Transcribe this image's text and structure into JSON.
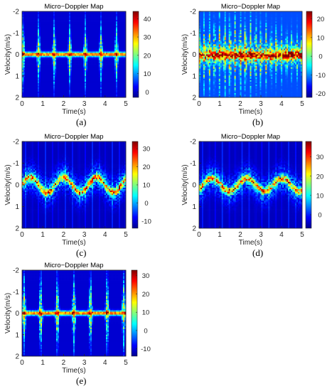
{
  "panels": [
    {
      "label": "(a)"
    },
    {
      "label": "(b)"
    },
    {
      "label": "(c)"
    },
    {
      "label": "(d)"
    },
    {
      "label": "(e)"
    }
  ],
  "chart_data": [
    {
      "type": "heatmap",
      "title": "Micro−Doppler Map",
      "xlabel": "Time(s)",
      "ylabel": "Velocity(m/s)",
      "xlim": [
        0,
        5
      ],
      "ylim": [
        -2,
        2
      ],
      "y_reversed": true,
      "x_ticks": [
        "0",
        "1",
        "2",
        "3",
        "4",
        "5"
      ],
      "y_ticks": [
        "-2",
        "-1",
        "0",
        "1",
        "2"
      ],
      "colorbar_ticks": [
        "0",
        "10",
        "20",
        "30",
        "40"
      ],
      "colorbar_range": [
        -3,
        44
      ],
      "pattern": {
        "kind": "periodic-spikes",
        "period_s": 0.75,
        "phase_s": 0.05,
        "spike_amplitude_ms": 1.3,
        "noise": 0.25
      }
    },
    {
      "type": "heatmap",
      "title": "Micro−Doppler Map",
      "xlabel": "Time(s)",
      "ylabel": "Velocity(m/s)",
      "xlim": [
        0,
        5
      ],
      "ylim": [
        -2,
        2
      ],
      "y_reversed": true,
      "x_ticks": [
        "0",
        "1",
        "2",
        "3",
        "4",
        "5"
      ],
      "y_ticks": [
        "-2",
        "-1",
        "0",
        "1",
        "2"
      ],
      "colorbar_ticks": [
        "-20",
        "-10",
        "0",
        "10",
        "20"
      ],
      "colorbar_range": [
        -22,
        24
      ],
      "pattern": {
        "kind": "dense-vertical",
        "period_s": 0.25,
        "phase_s": 0.0,
        "spike_amplitude_ms": 1.4,
        "noise": 0.7
      }
    },
    {
      "type": "heatmap",
      "title": "Micro−Doppler Map",
      "xlabel": "Time(s)",
      "ylabel": "Velocity(m/s)",
      "xlim": [
        0,
        5
      ],
      "ylim": [
        -2,
        2
      ],
      "y_reversed": true,
      "x_ticks": [
        "0",
        "1",
        "2",
        "3",
        "4",
        "5"
      ],
      "y_ticks": [
        "-2",
        "-1",
        "0",
        "1",
        "2"
      ],
      "colorbar_ticks": [
        "-10",
        "0",
        "10",
        "20",
        "30"
      ],
      "colorbar_range": [
        -14,
        34
      ],
      "pattern": {
        "kind": "wavy-band",
        "period_s": 1.6,
        "phase_s": 0.0,
        "spike_amplitude_ms": 0.35,
        "noise": 0.35
      }
    },
    {
      "type": "heatmap",
      "title": "Micro−Doppler Map",
      "xlabel": "Time(s)",
      "ylabel": "Velocity(m/s)",
      "xlim": [
        0,
        5
      ],
      "ylim": [
        -2,
        2
      ],
      "y_reversed": true,
      "x_ticks": [
        "0",
        "1",
        "2",
        "3",
        "4",
        "5"
      ],
      "y_ticks": [
        "-2",
        "-1",
        "0",
        "1",
        "2"
      ],
      "colorbar_ticks": [
        "0",
        "10",
        "20",
        "30"
      ],
      "colorbar_range": [
        -7,
        38
      ],
      "pattern": {
        "kind": "wavy-band",
        "period_s": 1.7,
        "phase_s": 0.2,
        "spike_amplitude_ms": 0.3,
        "noise": 0.3
      }
    },
    {
      "type": "heatmap",
      "title": "Micro−Doppler Map",
      "xlabel": "Time(s)",
      "ylabel": "Velocity(m/s)",
      "xlim": [
        0,
        5
      ],
      "ylim": [
        -2,
        2
      ],
      "y_reversed": true,
      "x_ticks": [
        "0",
        "1",
        "2",
        "3",
        "4",
        "5"
      ],
      "y_ticks": [
        "-2",
        "-1",
        "0",
        "1",
        "2"
      ],
      "colorbar_ticks": [
        "-10",
        "0",
        "10",
        "20",
        "30"
      ],
      "colorbar_range": [
        -14,
        33
      ],
      "pattern": {
        "kind": "periodic-spikes",
        "period_s": 0.8,
        "phase_s": 0.1,
        "spike_amplitude_ms": 1.5,
        "noise": 0.3
      }
    }
  ]
}
